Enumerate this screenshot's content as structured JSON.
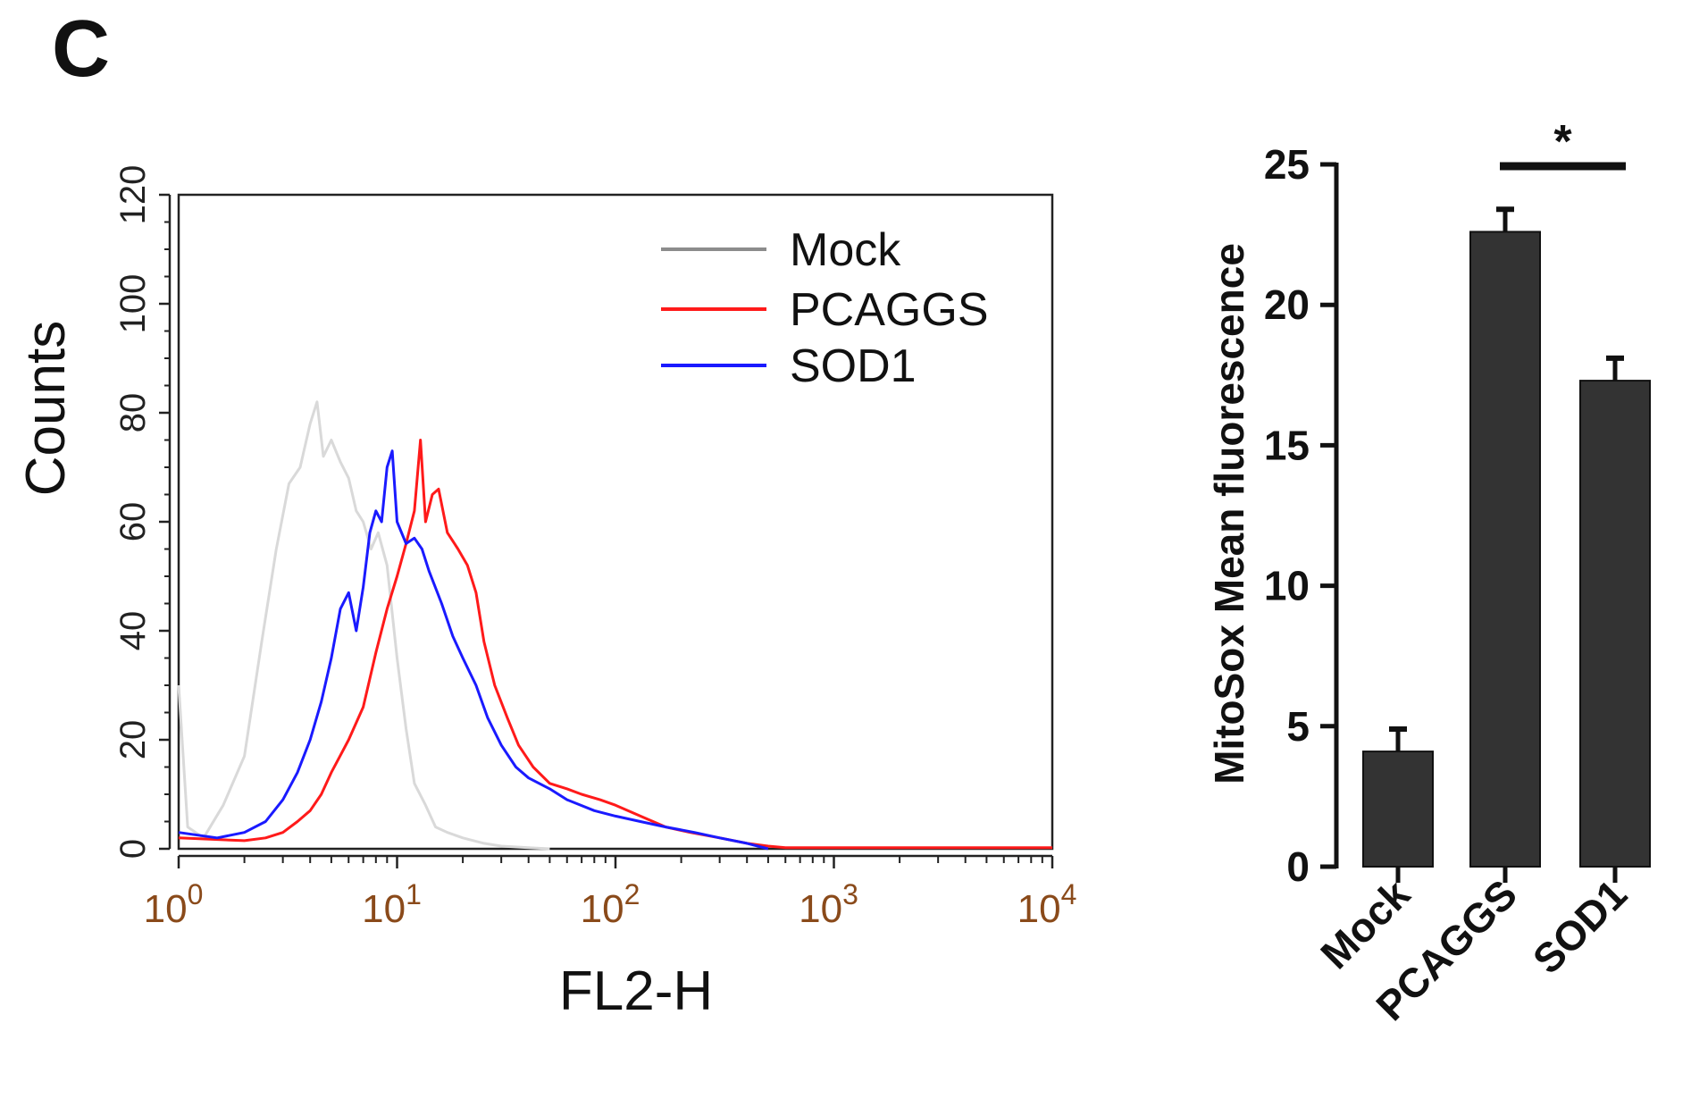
{
  "panel_label": "C",
  "chart_data": [
    {
      "type": "line",
      "title": "",
      "xlabel": "FL2-H",
      "ylabel": "Counts",
      "x_scale": "log",
      "xlim": [
        1,
        10000
      ],
      "ylim": [
        0,
        120
      ],
      "x_ticks": [
        1,
        10,
        100,
        1000,
        10000
      ],
      "x_tick_labels": [
        {
          "base": "10",
          "exp": "0"
        },
        {
          "base": "10",
          "exp": "1"
        },
        {
          "base": "10",
          "exp": "2"
        },
        {
          "base": "10",
          "exp": "3"
        },
        {
          "base": "10",
          "exp": "4"
        }
      ],
      "y_ticks": [
        0,
        20,
        40,
        60,
        80,
        100,
        120
      ],
      "legend_position": "top-right",
      "series": [
        {
          "name": "Mock",
          "color": "#d9d9d9",
          "legend_color": "#8c8c8c",
          "x": [
            1,
            1.1,
            1.3,
            1.6,
            2,
            2.4,
            2.8,
            3.2,
            3.6,
            4.0,
            4.3,
            4.6,
            5.0,
            5.5,
            6.0,
            6.5,
            7.0,
            7.6,
            8.2,
            9.0,
            10,
            11,
            12,
            13.5,
            15,
            17,
            20,
            25,
            30,
            40,
            50
          ],
          "y": [
            30,
            4,
            2,
            8,
            17,
            38,
            55,
            67,
            70,
            78,
            82,
            72,
            75,
            71,
            68,
            62,
            60,
            55,
            58,
            52,
            35,
            22,
            12,
            8,
            4,
            3,
            2,
            1,
            0.5,
            0.2,
            0
          ]
        },
        {
          "name": "PCAGGS",
          "color": "#ff1a1a",
          "legend_color": "#ff1a1a",
          "x": [
            1,
            2,
            2.5,
            3,
            3.5,
            4,
            4.5,
            5,
            6,
            7,
            8,
            9,
            10,
            11,
            12,
            12.8,
            13.5,
            14.5,
            15.5,
            17,
            19,
            21,
            23,
            25,
            28,
            32,
            36,
            42,
            50,
            60,
            70,
            85,
            100,
            130,
            170,
            220,
            300,
            400,
            500,
            600,
            1000,
            10000
          ],
          "y": [
            2,
            1.5,
            2,
            3,
            5,
            7,
            10,
            14,
            20,
            26,
            36,
            44,
            50,
            56,
            62,
            75,
            60,
            65,
            66,
            58,
            55,
            52,
            47,
            38,
            30,
            24,
            19,
            15,
            12,
            11,
            10,
            9,
            8,
            6,
            4,
            3,
            2,
            1,
            0.5,
            0.2,
            0.2,
            0.2
          ]
        },
        {
          "name": "SOD1",
          "color": "#1a1aff",
          "legend_color": "#1a1aff",
          "x": [
            1,
            1.5,
            2,
            2.5,
            3,
            3.5,
            4,
            4.5,
            5,
            5.5,
            6,
            6.5,
            7,
            7.5,
            8,
            8.5,
            9,
            9.5,
            10,
            11,
            12,
            13,
            14,
            16,
            18,
            20,
            23,
            26,
            30,
            35,
            40,
            50,
            60,
            80,
            100,
            130,
            170,
            230,
            300,
            400,
            500
          ],
          "y": [
            3,
            2,
            3,
            5,
            9,
            14,
            20,
            27,
            35,
            44,
            47,
            40,
            48,
            58,
            62,
            60,
            70,
            73,
            60,
            56,
            57,
            55,
            51,
            45,
            39,
            35,
            30,
            24,
            19,
            15,
            13,
            11,
            9,
            7,
            6,
            5,
            4,
            3,
            2,
            1,
            0
          ]
        }
      ]
    },
    {
      "type": "bar",
      "title": "",
      "xlabel": "",
      "ylabel": "MitoSox Mean fluorescence",
      "ylim": [
        0,
        25
      ],
      "y_ticks": [
        0,
        5,
        10,
        15,
        20,
        25
      ],
      "categories": [
        "Mock",
        "PCAGGS",
        "SOD1"
      ],
      "values": [
        4.1,
        22.6,
        17.3
      ],
      "errors": [
        0.8,
        0.8,
        0.8
      ],
      "bar_color": "#333333",
      "significance": {
        "between": [
          "PCAGGS",
          "SOD1"
        ],
        "label": "*"
      }
    }
  ]
}
